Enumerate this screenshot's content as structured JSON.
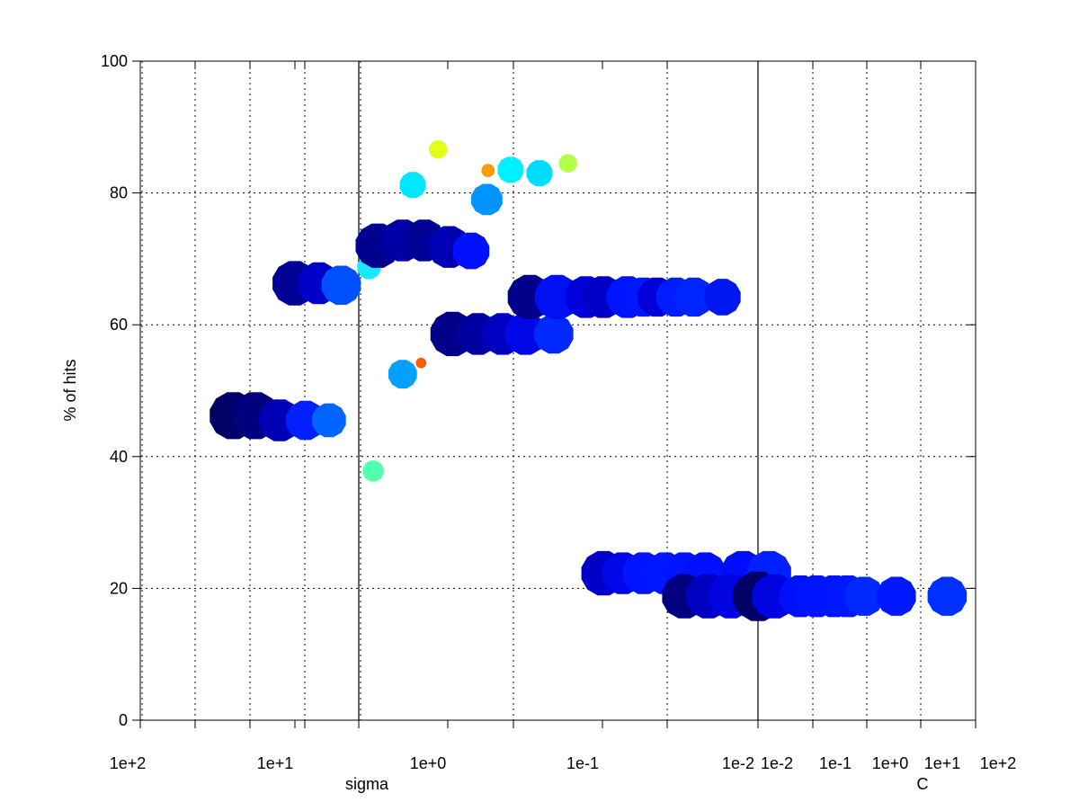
{
  "chart_data": {
    "type": "scatter",
    "title": "",
    "ylabel": "% of hits",
    "ylim": [
      0,
      100
    ],
    "y_ticks": [
      0,
      20,
      40,
      60,
      80,
      100
    ],
    "grid": true,
    "marker": "filled-dodecagon",
    "size_encodes": "unlabeled magnitude",
    "color_scale": "jet",
    "x_axes": [
      {
        "name": "sigma",
        "xlabel": "sigma",
        "scale": "log",
        "direction": "decreasing",
        "xlim": [
          100,
          0.01
        ],
        "tick_labels": [
          "1e+2",
          "1e+1",
          "1e+0",
          "1e-1",
          "1e-2"
        ]
      },
      {
        "name": "C",
        "xlabel": "C",
        "scale": "log",
        "direction": "increasing",
        "xlim": [
          0.01,
          100
        ],
        "tick_labels": [
          "1e-2",
          "1e-1",
          "1e+0",
          "1e+1",
          "1e+2"
        ]
      }
    ],
    "series": [
      {
        "axis": "sigma",
        "points": [
          {
            "x": 25,
            "y": 46.2,
            "size": 0.9,
            "color": "#000066"
          },
          {
            "x": 18,
            "y": 46.2,
            "size": 0.9,
            "color": "#00007e"
          },
          {
            "x": 12.5,
            "y": 45.5,
            "size": 0.8,
            "color": "#0000b4"
          },
          {
            "x": 8.5,
            "y": 45.5,
            "size": 0.75,
            "color": "#0020ff"
          },
          {
            "x": 6,
            "y": 45.5,
            "size": 0.65,
            "color": "#0064ff"
          },
          {
            "x": 10,
            "y": 66.3,
            "size": 0.85,
            "color": "#000094"
          },
          {
            "x": 7,
            "y": 66.3,
            "size": 0.8,
            "color": "#0000c8"
          },
          {
            "x": 5,
            "y": 66.0,
            "size": 0.75,
            "color": "#0050ff"
          },
          {
            "x": 3.3,
            "y": 68.7,
            "size": 0.45,
            "color": "#18e8ff"
          },
          {
            "x": 3.1,
            "y": 37.8,
            "size": 0.4,
            "color": "#50ffb0"
          },
          {
            "x": 2.9,
            "y": 72.0,
            "size": 0.85,
            "color": "#000090"
          },
          {
            "x": 2.0,
            "y": 72.8,
            "size": 0.8,
            "color": "#0000a6"
          },
          {
            "x": 1.45,
            "y": 72.8,
            "size": 0.8,
            "color": "#000094"
          },
          {
            "x": 1.0,
            "y": 71.8,
            "size": 0.8,
            "color": "#0000b4"
          },
          {
            "x": 0.72,
            "y": 71.2,
            "size": 0.7,
            "color": "#0010ff"
          },
          {
            "x": 2.0,
            "y": 52.5,
            "size": 0.55,
            "color": "#00a0ff"
          },
          {
            "x": 1.52,
            "y": 54.2,
            "size": 0.2,
            "color": "#ff5c00"
          },
          {
            "x": 1.72,
            "y": 81.2,
            "size": 0.5,
            "color": "#00e6ff"
          },
          {
            "x": 1.18,
            "y": 86.6,
            "size": 0.35,
            "color": "#e2ff1c"
          },
          {
            "x": 0.56,
            "y": 83.4,
            "size": 0.25,
            "color": "#ff9a00"
          },
          {
            "x": 0.4,
            "y": 83.5,
            "size": 0.5,
            "color": "#00f0ff"
          },
          {
            "x": 0.26,
            "y": 83.0,
            "size": 0.5,
            "color": "#00dcff"
          },
          {
            "x": 0.17,
            "y": 84.5,
            "size": 0.35,
            "color": "#b4ff48"
          },
          {
            "x": 0.57,
            "y": 79.0,
            "size": 0.6,
            "color": "#0094ff"
          },
          {
            "x": 0.95,
            "y": 58.6,
            "size": 0.85,
            "color": "#000088"
          },
          {
            "x": 0.65,
            "y": 58.6,
            "size": 0.8,
            "color": "#0000a0"
          },
          {
            "x": 0.45,
            "y": 58.6,
            "size": 0.8,
            "color": "#0000c0"
          },
          {
            "x": 0.32,
            "y": 58.6,
            "size": 0.8,
            "color": "#0008e8"
          },
          {
            "x": 0.21,
            "y": 58.6,
            "size": 0.75,
            "color": "#0028ff"
          },
          {
            "x": 0.3,
            "y": 64.2,
            "size": 0.85,
            "color": "#00008a"
          },
          {
            "x": 0.2,
            "y": 64.2,
            "size": 0.85,
            "color": "#0010f2"
          },
          {
            "x": 0.13,
            "y": 64.2,
            "size": 0.8,
            "color": "#0000dc"
          },
          {
            "x": 0.1,
            "y": 64.2,
            "size": 0.8,
            "color": "#0000c8"
          },
          {
            "x": 0.07,
            "y": 64.2,
            "size": 0.8,
            "color": "#0014ff"
          },
          {
            "x": 0.055,
            "y": 64.2,
            "size": 0.75,
            "color": "#0018ff"
          },
          {
            "x": 0.045,
            "y": 64.2,
            "size": 0.75,
            "color": "#0000d8"
          },
          {
            "x": 0.034,
            "y": 64.2,
            "size": 0.75,
            "color": "#001cff"
          },
          {
            "x": 0.026,
            "y": 64.2,
            "size": 0.75,
            "color": "#0024ff"
          },
          {
            "x": 0.017,
            "y": 64.2,
            "size": 0.7,
            "color": "#0018f0"
          },
          {
            "x": 0.1,
            "y": 22.3,
            "size": 0.85,
            "color": "#0000c8"
          },
          {
            "x": 0.075,
            "y": 22.3,
            "size": 0.8,
            "color": "#0008e8"
          },
          {
            "x": 0.055,
            "y": 22.3,
            "size": 0.8,
            "color": "#0014ff"
          },
          {
            "x": 0.04,
            "y": 22.3,
            "size": 0.8,
            "color": "#0018ff"
          },
          {
            "x": 0.03,
            "y": 22.3,
            "size": 0.8,
            "color": "#0014ff"
          },
          {
            "x": 0.022,
            "y": 22.3,
            "size": 0.8,
            "color": "#0010ff"
          },
          {
            "x": 0.0125,
            "y": 22.3,
            "size": 0.85,
            "color": "#000cff"
          },
          {
            "x": 0.0085,
            "y": 22.3,
            "size": 0.85,
            "color": "#0020ff"
          },
          {
            "x": 0.03,
            "y": 18.8,
            "size": 0.85,
            "color": "#000080"
          },
          {
            "x": 0.021,
            "y": 18.8,
            "size": 0.85,
            "color": "#0000c0"
          },
          {
            "x": 0.015,
            "y": 18.8,
            "size": 0.85,
            "color": "#0004e0"
          }
        ]
      },
      {
        "axis": "C",
        "points": [
          {
            "x": 0.01,
            "y": 18.8,
            "size": 0.95,
            "color": "#000066"
          },
          {
            "x": 0.02,
            "y": 18.8,
            "size": 0.85,
            "color": "#0004e0"
          },
          {
            "x": 0.06,
            "y": 18.8,
            "size": 0.8,
            "color": "#0010f8"
          },
          {
            "x": 0.12,
            "y": 18.8,
            "size": 0.8,
            "color": "#0014ff"
          },
          {
            "x": 0.25,
            "y": 18.8,
            "size": 0.8,
            "color": "#0014ff"
          },
          {
            "x": 0.45,
            "y": 18.8,
            "size": 0.8,
            "color": "#0018ff"
          },
          {
            "x": 0.9,
            "y": 18.8,
            "size": 0.75,
            "color": "#0028ff"
          },
          {
            "x": 3.5,
            "y": 18.8,
            "size": 0.75,
            "color": "#0018ff"
          },
          {
            "x": 30,
            "y": 18.8,
            "size": 0.75,
            "color": "#0030ff"
          }
        ]
      }
    ]
  }
}
